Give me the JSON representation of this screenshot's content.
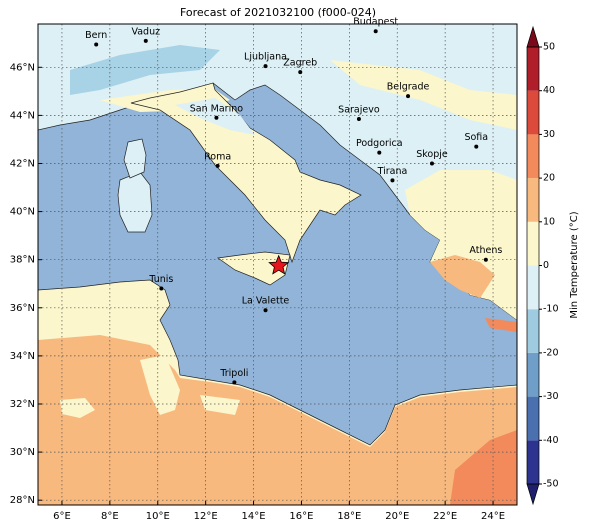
{
  "title": "Forecast of 2021032100 (f000-024)",
  "map": {
    "xlim": [
      5,
      25
    ],
    "ylim": [
      27.8,
      47.8
    ],
    "xticks": [
      {
        "value": 6,
        "label": "6°E"
      },
      {
        "value": 8,
        "label": "8°E"
      },
      {
        "value": 10,
        "label": "10°E"
      },
      {
        "value": 12,
        "label": "12°E"
      },
      {
        "value": 14,
        "label": "14°E"
      },
      {
        "value": 16,
        "label": "16°E"
      },
      {
        "value": 18,
        "label": "18°E"
      },
      {
        "value": 20,
        "label": "20°E"
      },
      {
        "value": 22,
        "label": "22°E"
      },
      {
        "value": 24,
        "label": "24°E"
      }
    ],
    "yticks": [
      {
        "value": 28,
        "label": "28°N"
      },
      {
        "value": 30,
        "label": "30°N"
      },
      {
        "value": 32,
        "label": "32°N"
      },
      {
        "value": 34,
        "label": "34°N"
      },
      {
        "value": 36,
        "label": "36°N"
      },
      {
        "value": 38,
        "label": "38°N"
      },
      {
        "value": 40,
        "label": "40°N"
      },
      {
        "value": 42,
        "label": "42°N"
      },
      {
        "value": 44,
        "label": "44°N"
      },
      {
        "value": 46,
        "label": "46°N"
      }
    ],
    "grid": true,
    "cities": [
      {
        "name": "Bern",
        "lon": 7.43,
        "lat": 46.95
      },
      {
        "name": "Vaduz",
        "lon": 9.5,
        "lat": 47.1
      },
      {
        "name": "Budapest",
        "lon": 19.1,
        "lat": 47.5
      },
      {
        "name": "Ljubljana",
        "lon": 14.5,
        "lat": 46.05
      },
      {
        "name": "Zagreb",
        "lon": 15.95,
        "lat": 45.8
      },
      {
        "name": "Belgrade",
        "lon": 20.45,
        "lat": 44.8
      },
      {
        "name": "San Marino",
        "lon": 12.45,
        "lat": 43.9
      },
      {
        "name": "Sarajevo",
        "lon": 18.4,
        "lat": 43.85
      },
      {
        "name": "Sofia",
        "lon": 23.3,
        "lat": 42.7
      },
      {
        "name": "Podgorica",
        "lon": 19.25,
        "lat": 42.45
      },
      {
        "name": "Skopje",
        "lon": 21.45,
        "lat": 42.0
      },
      {
        "name": "Roma",
        "lon": 12.5,
        "lat": 41.9
      },
      {
        "name": "Tirana",
        "lon": 19.8,
        "lat": 41.3
      },
      {
        "name": "Athens",
        "lon": 23.7,
        "lat": 38.0
      },
      {
        "name": "Tunis",
        "lon": 10.15,
        "lat": 36.8
      },
      {
        "name": "La Valette",
        "lon": 14.5,
        "lat": 35.9
      },
      {
        "name": "Tripoli",
        "lon": 13.2,
        "lat": 32.9
      }
    ],
    "marker": {
      "lon": 15.05,
      "lat": 37.75,
      "color": "#e8141c"
    }
  },
  "colorbar": {
    "label": "Min Temperature (°C)",
    "ticks": [
      -50,
      -40,
      -30,
      -20,
      -10,
      0,
      10,
      20,
      30,
      40,
      50
    ],
    "colors": [
      "#2c3490",
      "#4a70b0",
      "#6f9fc9",
      "#9fcbe0",
      "#dcf0f5",
      "#fbf6cc",
      "#f8b97f",
      "#f28a5c",
      "#db4a3a",
      "#b01e2a"
    ],
    "extend_colors": [
      "#1f1f6e",
      "#7a0a1a"
    ]
  }
}
